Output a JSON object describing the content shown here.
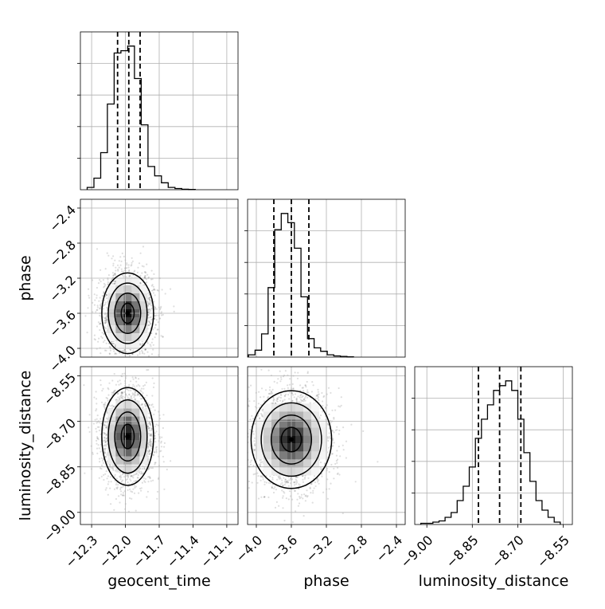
{
  "chart_data": {
    "type": "corner",
    "parameters": [
      "geocent_time",
      "phase",
      "luminosity_distance"
    ],
    "axis_labels": {
      "geocent_time": "geocent_time",
      "phase": "phase",
      "luminosity_distance": "luminosity_distance"
    },
    "ranges": {
      "geocent_time": [
        -12.4,
        -11.0
      ],
      "phase": [
        -4.1,
        -2.3
      ],
      "luminosity_distance": [
        -9.04,
        -8.52
      ]
    },
    "ticks": {
      "geocent_time": [
        "−12.3",
        "−12.0",
        "−11.7",
        "−11.4",
        "−11.1"
      ],
      "phase": [
        "−4.0",
        "−3.6",
        "−3.2",
        "−2.8",
        "−2.4"
      ],
      "luminosity_distance": [
        "−9.00",
        "−8.85",
        "−8.70",
        "−8.55"
      ]
    },
    "tick_values": {
      "geocent_time": [
        -12.3,
        -12.0,
        -11.7,
        -11.4,
        -11.1
      ],
      "phase": [
        -4.0,
        -3.6,
        -3.2,
        -2.8,
        -2.4
      ],
      "luminosity_distance": [
        -9.0,
        -8.85,
        -8.7,
        -8.55
      ]
    },
    "marginals": {
      "geocent_time": {
        "bin_edges": [
          -12.34,
          -12.28,
          -12.22,
          -12.16,
          -12.1,
          -12.04,
          -11.98,
          -11.92,
          -11.86,
          -11.8,
          -11.74,
          -11.68,
          -11.62,
          -11.56,
          -11.5,
          -11.44,
          -11.38
        ],
        "counts": [
          1,
          5,
          16,
          37,
          59,
          60,
          62,
          48,
          28,
          10,
          6,
          3,
          1,
          0.5,
          0.2,
          0.1
        ],
        "quantiles": [
          -12.07,
          -11.97,
          -11.87
        ]
      },
      "phase": {
        "bin_edges": [
          -4.09,
          -4.015,
          -3.94,
          -3.865,
          -3.79,
          -3.715,
          -3.64,
          -3.565,
          -3.49,
          -3.415,
          -3.34,
          -3.265,
          -3.19,
          -3.115,
          -3.04,
          -2.965,
          -2.89
        ],
        "counts": [
          1,
          3,
          10,
          30,
          55,
          62,
          58,
          47,
          26,
          8,
          4,
          2.5,
          1,
          0.5,
          0.3,
          0.1
        ],
        "quantiles": [
          -3.8,
          -3.6,
          -3.4
        ]
      },
      "luminosity_distance": {
        "bin_edges": [
          -9.02,
          -9.0,
          -8.98,
          -8.96,
          -8.94,
          -8.92,
          -8.9,
          -8.88,
          -8.86,
          -8.84,
          -8.82,
          -8.8,
          -8.78,
          -8.76,
          -8.74,
          -8.72,
          -8.7,
          -8.68,
          -8.66,
          -8.64,
          -8.62,
          -8.6,
          -8.58,
          -8.56
        ],
        "counts": [
          0.5,
          0.5,
          1,
          1.5,
          3,
          5,
          10,
          16,
          24,
          36,
          44,
          50,
          56,
          58,
          60,
          56,
          44,
          30,
          18,
          10,
          6,
          3,
          1
        ],
        "quantiles": [
          -8.83,
          -8.76,
          -8.69
        ]
      }
    },
    "joint_2d": [
      {
        "x": "geocent_time",
        "y": "phase",
        "center": [
          -11.98,
          -3.6
        ]
      },
      {
        "x": "geocent_time",
        "y": "luminosity_distance",
        "center": [
          -11.98,
          -8.75
        ]
      },
      {
        "x": "phase",
        "y": "luminosity_distance",
        "center": [
          -3.6,
          -8.76
        ]
      }
    ]
  }
}
